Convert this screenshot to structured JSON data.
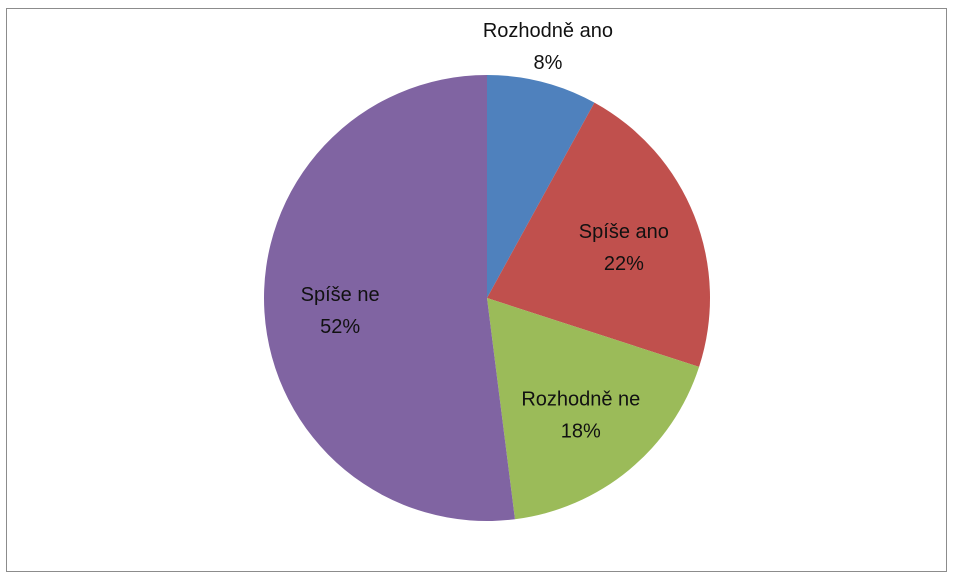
{
  "chart_data": {
    "type": "pie",
    "start_angle_deg": 0,
    "direction": "clockwise",
    "slices": [
      {
        "label": "Rozhodně ano",
        "value": 8,
        "display": "8%",
        "color": "#4f81bd",
        "label_position": "outside"
      },
      {
        "label": "Spíše ano",
        "value": 22,
        "display": "22%",
        "color": "#c0504d",
        "label_position": "inside"
      },
      {
        "label": "Rozhodně ne",
        "value": 18,
        "display": "18%",
        "color": "#9bbb59",
        "label_position": "inside"
      },
      {
        "label": "Spíše ne",
        "value": 52,
        "display": "52%",
        "color": "#8064a2",
        "label_position": "inside"
      }
    ]
  }
}
